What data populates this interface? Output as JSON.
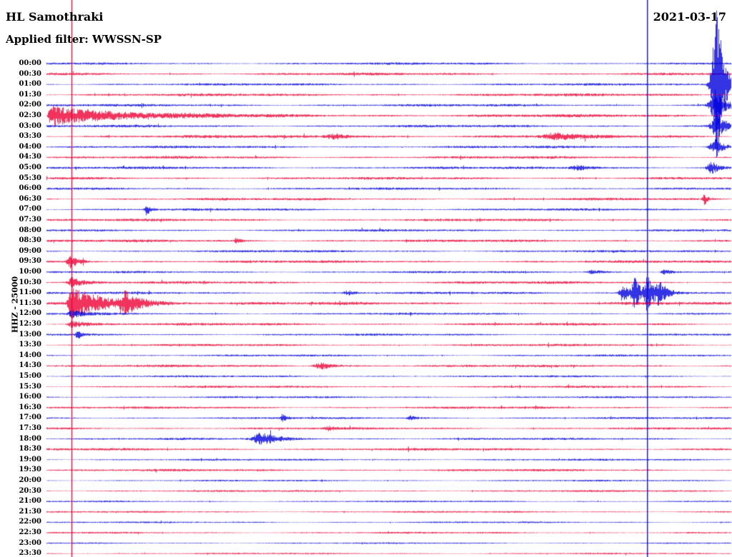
{
  "header": {
    "station": "HL Samothraki",
    "filter_line": "Applied filter: WWSSN-SP",
    "date": "2021-03-17",
    "channel_scale": "HHZ - 25000"
  },
  "chart_data": {
    "type": "line",
    "subtype": "helicorder-seismogram",
    "title": "HL Samothraki",
    "date": "2021-03-17",
    "filter": "WWSSN-SP",
    "channel": "HHZ",
    "scale": 25000,
    "row_duration_minutes": 30,
    "x_range_per_row_minutes": [
      0,
      30
    ],
    "legend": "off",
    "grid": "off",
    "palette": {
      "blue": "#0000dd",
      "red": "#ee0033"
    },
    "rows": [
      {
        "label": "00:00",
        "color": "blue",
        "noise": 1.4
      },
      {
        "label": "00:30",
        "color": "red",
        "noise": 1.6
      },
      {
        "label": "01:00",
        "color": "blue",
        "noise": 1.4
      },
      {
        "label": "01:30",
        "color": "red",
        "noise": 1.7
      },
      {
        "label": "02:00",
        "color": "blue",
        "noise": 1.5
      },
      {
        "label": "02:30",
        "color": "red",
        "noise": 1.9
      },
      {
        "label": "03:00",
        "color": "blue",
        "noise": 1.5
      },
      {
        "label": "03:30",
        "color": "red",
        "noise": 1.9
      },
      {
        "label": "04:00",
        "color": "blue",
        "noise": 1.5
      },
      {
        "label": "04:30",
        "color": "red",
        "noise": 1.6
      },
      {
        "label": "05:00",
        "color": "blue",
        "noise": 1.5
      },
      {
        "label": "05:30",
        "color": "red",
        "noise": 1.6
      },
      {
        "label": "06:00",
        "color": "blue",
        "noise": 1.4
      },
      {
        "label": "06:30",
        "color": "red",
        "noise": 1.5
      },
      {
        "label": "07:00",
        "color": "blue",
        "noise": 1.4
      },
      {
        "label": "07:30",
        "color": "red",
        "noise": 1.5
      },
      {
        "label": "08:00",
        "color": "blue",
        "noise": 1.4
      },
      {
        "label": "08:30",
        "color": "red",
        "noise": 1.6
      },
      {
        "label": "09:00",
        "color": "blue",
        "noise": 1.4
      },
      {
        "label": "09:30",
        "color": "red",
        "noise": 1.6
      },
      {
        "label": "10:00",
        "color": "blue",
        "noise": 1.3
      },
      {
        "label": "10:30",
        "color": "red",
        "noise": 1.6
      },
      {
        "label": "11:00",
        "color": "blue",
        "noise": 1.4
      },
      {
        "label": "11:30",
        "color": "red",
        "noise": 1.8
      },
      {
        "label": "12:00",
        "color": "blue",
        "noise": 1.3
      },
      {
        "label": "12:30",
        "color": "red",
        "noise": 1.6
      },
      {
        "label": "13:00",
        "color": "blue",
        "noise": 1.3
      },
      {
        "label": "13:30",
        "color": "red",
        "noise": 1.4
      },
      {
        "label": "14:00",
        "color": "blue",
        "noise": 1.2
      },
      {
        "label": "14:30",
        "color": "red",
        "noise": 1.5
      },
      {
        "label": "15:00",
        "color": "blue",
        "noise": 1.2
      },
      {
        "label": "15:30",
        "color": "red",
        "noise": 1.4
      },
      {
        "label": "16:00",
        "color": "blue",
        "noise": 1.2
      },
      {
        "label": "16:30",
        "color": "red",
        "noise": 1.4
      },
      {
        "label": "17:00",
        "color": "blue",
        "noise": 1.2
      },
      {
        "label": "17:30",
        "color": "red",
        "noise": 1.4
      },
      {
        "label": "18:00",
        "color": "blue",
        "noise": 1.3
      },
      {
        "label": "18:30",
        "color": "red",
        "noise": 1.5
      },
      {
        "label": "19:00",
        "color": "blue",
        "noise": 1.2
      },
      {
        "label": "19:30",
        "color": "red",
        "noise": 1.4
      },
      {
        "label": "20:00",
        "color": "blue",
        "noise": 1.0
      },
      {
        "label": "20:30",
        "color": "red",
        "noise": 1.2
      },
      {
        "label": "21:00",
        "color": "blue",
        "noise": 1.0
      },
      {
        "label": "21:30",
        "color": "red",
        "noise": 1.1
      },
      {
        "label": "22:00",
        "color": "blue",
        "noise": 1.0
      },
      {
        "label": "22:30",
        "color": "red",
        "noise": 1.1
      },
      {
        "label": "23:00",
        "color": "blue",
        "noise": 0.9
      },
      {
        "label": "23:30",
        "color": "red",
        "noise": 1.0
      }
    ],
    "events": [
      {
        "row": 2,
        "f": 0.98,
        "amp": 112,
        "rise": 7,
        "decay": 9
      },
      {
        "row": 4,
        "f": 0.978,
        "amp": 22,
        "rise": 8,
        "decay": 12
      },
      {
        "row": 5,
        "f": 0.012,
        "amp": 13,
        "rise": 5,
        "decay": 90
      },
      {
        "row": 5,
        "f": 0.004,
        "amp": 9,
        "rise": 2,
        "decay": 6
      },
      {
        "row": 6,
        "f": 0.98,
        "amp": 16,
        "rise": 8,
        "decay": 14
      },
      {
        "row": 7,
        "f": 0.423,
        "amp": 3.5,
        "rise": 15,
        "decay": 22
      },
      {
        "row": 7,
        "f": 0.747,
        "amp": 4.5,
        "rise": 18,
        "decay": 25
      },
      {
        "row": 8,
        "f": 0.978,
        "amp": 11,
        "rise": 8,
        "decay": 12
      },
      {
        "row": 10,
        "f": 0.778,
        "amp": 3.5,
        "rise": 12,
        "decay": 18
      },
      {
        "row": 10,
        "f": 0.972,
        "amp": 9,
        "rise": 6,
        "decay": 10
      },
      {
        "row": 13,
        "f": 0.961,
        "amp": 9,
        "rise": 2.5,
        "decay": 4
      },
      {
        "row": 14,
        "f": 0.146,
        "amp": 8,
        "rise": 2.5,
        "decay": 5
      },
      {
        "row": 17,
        "f": 0.277,
        "amp": 5,
        "rise": 2,
        "decay": 6
      },
      {
        "row": 19,
        "f": 0.034,
        "amp": 9,
        "rise": 4,
        "decay": 12
      },
      {
        "row": 20,
        "f": 0.799,
        "amp": 3,
        "rise": 8,
        "decay": 12
      },
      {
        "row": 20,
        "f": 0.904,
        "amp": 4,
        "rise": 5,
        "decay": 10
      },
      {
        "row": 21,
        "f": 0.037,
        "amp": 7,
        "rise": 5,
        "decay": 15
      },
      {
        "row": 22,
        "f": 0.441,
        "amp": 3,
        "rise": 6,
        "decay": 10
      },
      {
        "row": 22,
        "f": 0.843,
        "amp": 15,
        "rise": 5,
        "decay": 10
      },
      {
        "row": 22,
        "f": 0.86,
        "amp": 20,
        "rise": 4,
        "decay": 8
      },
      {
        "row": 22,
        "f": 0.878,
        "amp": 26,
        "rise": 4,
        "decay": 10
      },
      {
        "row": 22,
        "f": 0.896,
        "amp": 13,
        "rise": 5,
        "decay": 12
      },
      {
        "row": 23,
        "f": 0.037,
        "amp": 24,
        "rise": 5,
        "decay": 45
      },
      {
        "row": 23,
        "f": 0.115,
        "amp": 14,
        "rise": 6,
        "decay": 18
      },
      {
        "row": 24,
        "f": 0.037,
        "amp": 5,
        "rise": 5,
        "decay": 20
      },
      {
        "row": 25,
        "f": 0.037,
        "amp": 5,
        "rise": 5,
        "decay": 20
      },
      {
        "row": 26,
        "f": 0.045,
        "amp": 7,
        "rise": 2.5,
        "decay": 5
      },
      {
        "row": 29,
        "f": 0.402,
        "amp": 5,
        "rise": 10,
        "decay": 16
      },
      {
        "row": 34,
        "f": 0.345,
        "amp": 6,
        "rise": 2.5,
        "decay": 5
      },
      {
        "row": 34,
        "f": 0.533,
        "amp": 3,
        "rise": 5,
        "decay": 8
      },
      {
        "row": 35,
        "f": 0.413,
        "amp": 2.5,
        "rise": 6,
        "decay": 10
      },
      {
        "row": 36,
        "f": 0.313,
        "amp": 9,
        "rise": 10,
        "decay": 22
      }
    ],
    "vlines": [
      {
        "f": 0.0366,
        "color": "red"
      },
      {
        "f": 0.878,
        "color": "blue"
      }
    ]
  }
}
